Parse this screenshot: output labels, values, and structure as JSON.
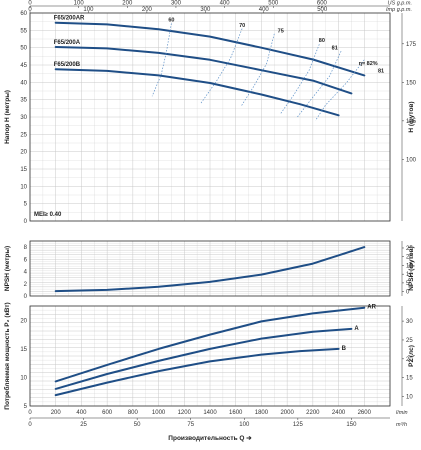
{
  "colors": {
    "curve": "#1f4e86",
    "grid": "#c8c8c8",
    "frame": "#333333",
    "efficiency": "#5b8fc7"
  },
  "top_scale": {
    "unit": "US g.p.m.",
    "ticks": [
      "0",
      "100",
      "200",
      "300",
      "400",
      "500",
      "600"
    ],
    "unit2": "Imp g.p.m.",
    "ticks2": [
      "0",
      "100",
      "200",
      "300",
      "400",
      "500"
    ]
  },
  "bottom_scale": {
    "unit_lmin": "l/min",
    "unit_m3h": "m³/h",
    "ticks_lmin": [
      "0",
      "200",
      "400",
      "600",
      "800",
      "1000",
      "1200",
      "1400",
      "1600",
      "1800",
      "2000",
      "2200",
      "2400",
      "2600"
    ],
    "ticks_m3h": [
      "0",
      "25",
      "50",
      "75",
      "100",
      "125",
      "150"
    ]
  },
  "xlabel": "Производительность Q",
  "chart_data": [
    {
      "type": "line",
      "ylabel": "Напор H (метры)",
      "ylabel_right": "H (футов)",
      "xlim": [
        0,
        2800
      ],
      "ylim": [
        0,
        60
      ],
      "yticks": [
        "0",
        "5",
        "10",
        "15",
        "20",
        "25",
        "30",
        "35",
        "40",
        "45",
        "50",
        "55",
        "60"
      ],
      "yticks_right": [
        "100",
        "125",
        "150",
        "175"
      ],
      "annotation": "MEI≥ 0.40",
      "series": [
        {
          "name": "F65/200AR",
          "x": [
            200,
            600,
            1000,
            1400,
            1800,
            2200,
            2600
          ],
          "y": [
            57.2,
            56.7,
            55.3,
            53.2,
            50.0,
            46.6,
            42.0
          ]
        },
        {
          "name": "F65/200A",
          "x": [
            200,
            600,
            1000,
            1400,
            1800,
            2200,
            2500
          ],
          "y": [
            50.2,
            49.8,
            48.5,
            46.5,
            43.5,
            40.5,
            36.8
          ]
        },
        {
          "name": "F65/200B",
          "x": [
            200,
            600,
            1000,
            1400,
            1800,
            2100,
            2400
          ],
          "y": [
            43.8,
            43.3,
            42.0,
            39.8,
            36.5,
            33.7,
            30.5
          ]
        }
      ],
      "efficiency_labels": [
        "60",
        "70",
        "75",
        "80",
        "81",
        "η= 82%",
        "81"
      ]
    },
    {
      "type": "line",
      "ylabel": "NPSH (метры)",
      "ylabel_right": "NPSH (футов)",
      "xlim": [
        0,
        2800
      ],
      "ylim": [
        0,
        9
      ],
      "yticks": [
        "0",
        "2",
        "4",
        "6",
        "8"
      ],
      "yticks_right": [
        "0",
        "5",
        "10",
        "15",
        "20",
        "25"
      ],
      "series": [
        {
          "name": "NPSH",
          "x": [
            200,
            600,
            1000,
            1400,
            1800,
            2200,
            2600
          ],
          "y": [
            0.8,
            1.0,
            1.5,
            2.3,
            3.5,
            5.3,
            8.0
          ]
        }
      ]
    },
    {
      "type": "line",
      "ylabel": "Потребляемая мощность P₂ (кВт)",
      "ylabel_right": "P2 (лс)",
      "xlim": [
        0,
        2800
      ],
      "ylim": [
        5,
        22.5
      ],
      "yticks": [
        "5",
        "10",
        "15",
        "20"
      ],
      "yticks_right": [
        "10",
        "15",
        "20",
        "25",
        "30"
      ],
      "series": [
        {
          "name": "AR",
          "x": [
            200,
            600,
            1000,
            1400,
            1800,
            2200,
            2600
          ],
          "y": [
            9.3,
            12.2,
            15.0,
            17.5,
            19.8,
            21.2,
            22.2
          ]
        },
        {
          "name": "A",
          "x": [
            200,
            600,
            1000,
            1400,
            1800,
            2200,
            2500
          ],
          "y": [
            8.0,
            10.6,
            12.9,
            15.0,
            16.8,
            18.0,
            18.5
          ]
        },
        {
          "name": "B",
          "x": [
            200,
            600,
            1000,
            1400,
            1800,
            2100,
            2400
          ],
          "y": [
            6.9,
            9.1,
            11.1,
            12.8,
            14.0,
            14.6,
            15.0
          ]
        }
      ]
    }
  ]
}
